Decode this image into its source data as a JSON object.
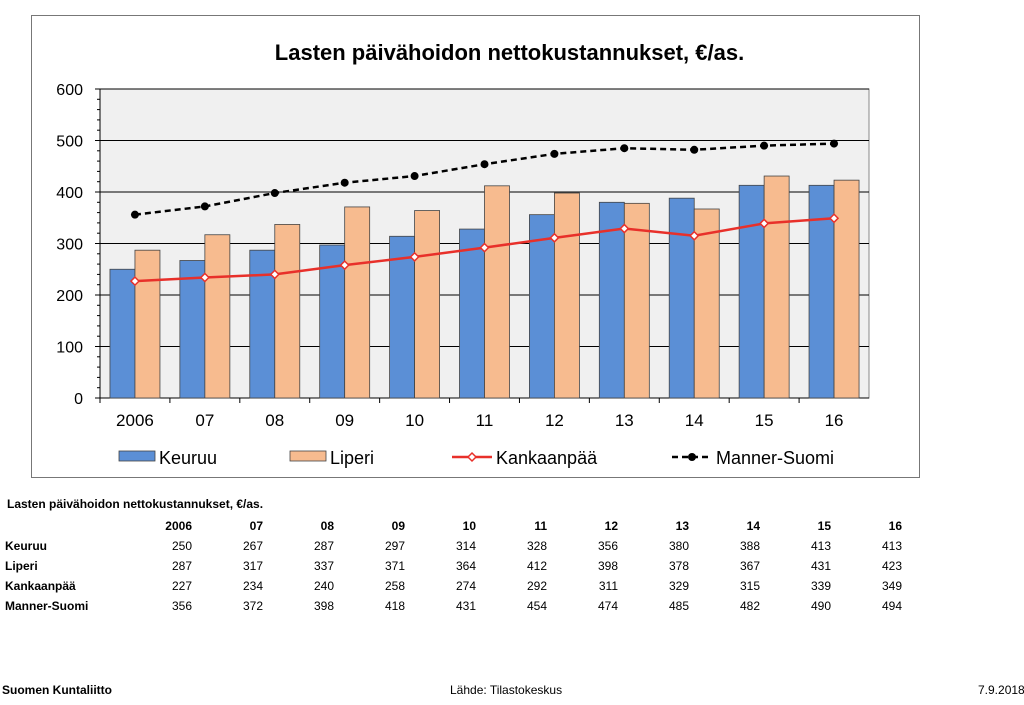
{
  "colors": {
    "keuruu": "#5b8fd6",
    "liperi": "#f7bb8f",
    "kankaanpaa": "#e8302a",
    "manner_suomi": "#000000",
    "plot_bg": "#f0f0f0",
    "frame": "#777777"
  },
  "chart_data": {
    "type": "bar",
    "title": "Lasten päivähoidon nettokustannukset, €/as.",
    "categories": [
      "2006",
      "07",
      "08",
      "09",
      "10",
      "11",
      "12",
      "13",
      "14",
      "15",
      "16"
    ],
    "ylim": [
      0,
      600
    ],
    "yticks": [
      0,
      100,
      200,
      300,
      400,
      500,
      600
    ],
    "grid": true,
    "legend_position": "bottom",
    "series": [
      {
        "name": "Keuruu",
        "type": "bar",
        "values": [
          250,
          267,
          287,
          297,
          314,
          328,
          356,
          380,
          388,
          413,
          413
        ]
      },
      {
        "name": "Liperi",
        "type": "bar",
        "values": [
          287,
          317,
          337,
          371,
          364,
          412,
          398,
          378,
          367,
          431,
          423
        ]
      },
      {
        "name": "Kankaanpää",
        "type": "line",
        "marker": "diamond",
        "values": [
          227,
          234,
          240,
          258,
          274,
          292,
          311,
          329,
          315,
          339,
          349
        ]
      },
      {
        "name": "Manner-Suomi",
        "type": "line",
        "dashed": true,
        "marker": "circle",
        "values": [
          356,
          372,
          398,
          418,
          431,
          454,
          474,
          485,
          482,
          490,
          494
        ]
      }
    ]
  },
  "table": {
    "title": "Lasten päivähoidon nettokustannukset, €/as.",
    "headers": [
      "2006",
      "07",
      "08",
      "09",
      "10",
      "11",
      "12",
      "13",
      "14",
      "15",
      "16"
    ],
    "rows": [
      {
        "label": "Keuruu",
        "values": [
          "250",
          "267",
          "287",
          "297",
          "314",
          "328",
          "356",
          "380",
          "388",
          "413",
          "413"
        ]
      },
      {
        "label": "Liperi",
        "values": [
          "287",
          "317",
          "337",
          "371",
          "364",
          "412",
          "398",
          "378",
          "367",
          "431",
          "423"
        ]
      },
      {
        "label": "Kankaanpää",
        "values": [
          "227",
          "234",
          "240",
          "258",
          "274",
          "292",
          "311",
          "329",
          "315",
          "339",
          "349"
        ]
      },
      {
        "label": "Manner-Suomi",
        "values": [
          "356",
          "372",
          "398",
          "418",
          "431",
          "454",
          "474",
          "485",
          "482",
          "490",
          "494"
        ]
      }
    ]
  },
  "footer": {
    "org": "Suomen Kuntaliitto",
    "source": "Lähde: Tilastokeskus",
    "date": "7.9.2018"
  }
}
